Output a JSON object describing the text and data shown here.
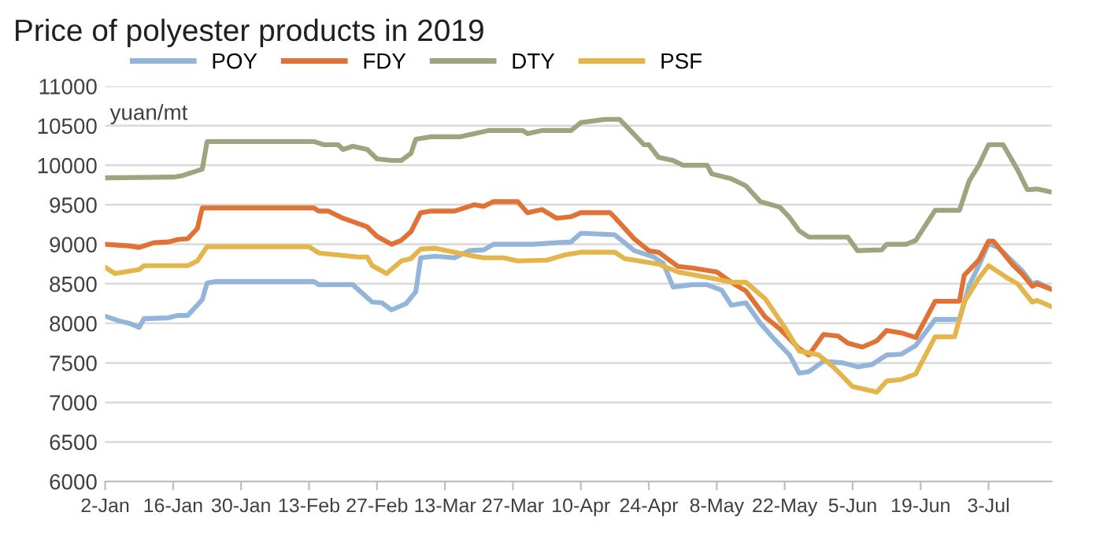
{
  "chart_data": {
    "type": "line",
    "title": "Price of polyester products in 2019",
    "ylabel": "yuan/mt",
    "xlim": [
      "2019-01-02",
      "2019-07-16"
    ],
    "xticks": [
      {
        "value": "2019-01-02",
        "label": "2-Jan"
      },
      {
        "value": "2019-01-16",
        "label": "16-Jan"
      },
      {
        "value": "2019-01-30",
        "label": "30-Jan"
      },
      {
        "value": "2019-02-13",
        "label": "13-Feb"
      },
      {
        "value": "2019-02-27",
        "label": "27-Feb"
      },
      {
        "value": "2019-03-13",
        "label": "13-Mar"
      },
      {
        "value": "2019-03-27",
        "label": "27-Mar"
      },
      {
        "value": "2019-04-10",
        "label": "10-Apr"
      },
      {
        "value": "2019-04-24",
        "label": "24-Apr"
      },
      {
        "value": "2019-05-08",
        "label": "8-May"
      },
      {
        "value": "2019-05-22",
        "label": "22-May"
      },
      {
        "value": "2019-06-05",
        "label": "5-Jun"
      },
      {
        "value": "2019-06-19",
        "label": "19-Jun"
      },
      {
        "value": "2019-07-03",
        "label": "3-Jul"
      }
    ],
    "ylim": [
      6000,
      11000
    ],
    "yticks": [
      6000,
      6500,
      7000,
      7500,
      8000,
      8500,
      9000,
      9500,
      10000,
      10500,
      11000
    ],
    "grid": "y",
    "legend": "top",
    "line_style": "solid",
    "series": [
      {
        "name": "POY",
        "color": "#92b5d9",
        "x": [
          "2019-01-02",
          "2019-01-05",
          "2019-01-07",
          "2019-01-09",
          "2019-01-10",
          "2019-01-15",
          "2019-01-17",
          "2019-01-19",
          "2019-01-22",
          "2019-01-23",
          "2019-01-25",
          "2019-02-14",
          "2019-02-15",
          "2019-02-22",
          "2019-02-26",
          "2019-02-28",
          "2019-03-02",
          "2019-03-05",
          "2019-03-07",
          "2019-03-08",
          "2019-03-11",
          "2019-03-15",
          "2019-03-18",
          "2019-03-21",
          "2019-03-23",
          "2019-03-31",
          "2019-04-05",
          "2019-04-08",
          "2019-04-10",
          "2019-04-17",
          "2019-04-21",
          "2019-04-25",
          "2019-04-27",
          "2019-04-29",
          "2019-05-03",
          "2019-05-06",
          "2019-05-09",
          "2019-05-11",
          "2019-05-14",
          "2019-05-17",
          "2019-05-20",
          "2019-05-23",
          "2019-05-25",
          "2019-05-27",
          "2019-05-30",
          "2019-06-03",
          "2019-06-06",
          "2019-06-09",
          "2019-06-12",
          "2019-06-15",
          "2019-06-18",
          "2019-06-22",
          "2019-06-27",
          "2019-06-29",
          "2019-07-01",
          "2019-07-03",
          "2019-07-05",
          "2019-07-08",
          "2019-07-10",
          "2019-07-12",
          "2019-07-13",
          "2019-07-16"
        ],
        "values": [
          8090,
          8030,
          8000,
          7950,
          8060,
          8070,
          8100,
          8100,
          8300,
          8510,
          8530,
          8530,
          8490,
          8490,
          8270,
          8260,
          8170,
          8250,
          8400,
          8830,
          8850,
          8830,
          8920,
          8930,
          9000,
          9000,
          9020,
          9030,
          9140,
          9120,
          8920,
          8840,
          8760,
          8460,
          8490,
          8490,
          8420,
          8230,
          8260,
          8000,
          7790,
          7600,
          7370,
          7390,
          7520,
          7500,
          7450,
          7480,
          7600,
          7610,
          7720,
          8050,
          8050,
          8480,
          8730,
          9010,
          8960,
          8780,
          8660,
          8500,
          8520,
          8430
        ]
      },
      {
        "name": "FDY",
        "color": "#e07235",
        "x": [
          "2019-01-02",
          "2019-01-07",
          "2019-01-09",
          "2019-01-12",
          "2019-01-15",
          "2019-01-17",
          "2019-01-19",
          "2019-01-21",
          "2019-01-22",
          "2019-02-14",
          "2019-02-15",
          "2019-02-17",
          "2019-02-20",
          "2019-02-25",
          "2019-02-27",
          "2019-03-02",
          "2019-03-04",
          "2019-03-06",
          "2019-03-08",
          "2019-03-10",
          "2019-03-15",
          "2019-03-19",
          "2019-03-21",
          "2019-03-23",
          "2019-03-28",
          "2019-03-30",
          "2019-04-02",
          "2019-04-05",
          "2019-04-08",
          "2019-04-10",
          "2019-04-16",
          "2019-04-17",
          "2019-04-21",
          "2019-04-24",
          "2019-04-26",
          "2019-04-30",
          "2019-05-03",
          "2019-05-08",
          "2019-05-11",
          "2019-05-14",
          "2019-05-18",
          "2019-05-21",
          "2019-05-25",
          "2019-05-27",
          "2019-05-30",
          "2019-06-02",
          "2019-06-04",
          "2019-06-07",
          "2019-06-10",
          "2019-06-12",
          "2019-06-15",
          "2019-06-18",
          "2019-06-22",
          "2019-06-27",
          "2019-06-28",
          "2019-07-01",
          "2019-07-03",
          "2019-07-04",
          "2019-07-08",
          "2019-07-10",
          "2019-07-12",
          "2019-07-13",
          "2019-07-16"
        ],
        "values": [
          9000,
          8980,
          8960,
          9020,
          9030,
          9060,
          9070,
          9200,
          9460,
          9460,
          9420,
          9420,
          9330,
          9220,
          9100,
          9000,
          9050,
          9160,
          9400,
          9420,
          9420,
          9500,
          9480,
          9540,
          9540,
          9400,
          9440,
          9330,
          9350,
          9400,
          9400,
          9340,
          9070,
          8920,
          8900,
          8720,
          8700,
          8650,
          8520,
          8410,
          8080,
          7930,
          7680,
          7600,
          7860,
          7840,
          7750,
          7700,
          7780,
          7910,
          7880,
          7820,
          8280,
          8280,
          8610,
          8800,
          9040,
          9040,
          8740,
          8620,
          8470,
          8500,
          8430
        ]
      },
      {
        "name": "DTY",
        "color": "#9ca67e",
        "x": [
          "2019-01-02",
          "2019-01-16",
          "2019-01-18",
          "2019-01-22",
          "2019-01-23",
          "2019-02-14",
          "2019-02-16",
          "2019-02-19",
          "2019-02-20",
          "2019-02-22",
          "2019-02-25",
          "2019-02-27",
          "2019-03-02",
          "2019-03-04",
          "2019-03-06",
          "2019-03-07",
          "2019-03-10",
          "2019-03-16",
          "2019-03-19",
          "2019-03-22",
          "2019-03-29",
          "2019-03-30",
          "2019-04-02",
          "2019-04-08",
          "2019-04-10",
          "2019-04-15",
          "2019-04-18",
          "2019-04-23",
          "2019-04-24",
          "2019-04-26",
          "2019-04-29",
          "2019-05-01",
          "2019-05-06",
          "2019-05-07",
          "2019-05-11",
          "2019-05-14",
          "2019-05-17",
          "2019-05-21",
          "2019-05-23",
          "2019-05-25",
          "2019-05-27",
          "2019-06-04",
          "2019-06-06",
          "2019-06-11",
          "2019-06-12",
          "2019-06-16",
          "2019-06-18",
          "2019-06-22",
          "2019-06-27",
          "2019-06-29",
          "2019-07-01",
          "2019-07-03",
          "2019-07-06",
          "2019-07-09",
          "2019-07-11",
          "2019-07-13",
          "2019-07-16"
        ],
        "values": [
          9840,
          9850,
          9870,
          9950,
          10300,
          10300,
          10260,
          10260,
          10200,
          10240,
          10200,
          10080,
          10060,
          10060,
          10150,
          10330,
          10360,
          10360,
          10400,
          10440,
          10440,
          10400,
          10440,
          10440,
          10540,
          10580,
          10580,
          10260,
          10260,
          10100,
          10060,
          10000,
          10000,
          9890,
          9830,
          9740,
          9540,
          9470,
          9340,
          9170,
          9090,
          9090,
          8920,
          8930,
          9000,
          9000,
          9050,
          9430,
          9430,
          9800,
          10000,
          10260,
          10260,
          9940,
          9690,
          9700,
          9660
        ]
      },
      {
        "name": "PSF",
        "color": "#e3b54a",
        "x": [
          "2019-01-02",
          "2019-01-04",
          "2019-01-07",
          "2019-01-09",
          "2019-01-10",
          "2019-01-19",
          "2019-01-21",
          "2019-01-23",
          "2019-02-13",
          "2019-02-15",
          "2019-02-20",
          "2019-02-23",
          "2019-02-25",
          "2019-02-26",
          "2019-03-01",
          "2019-03-04",
          "2019-03-06",
          "2019-03-08",
          "2019-03-11",
          "2019-03-19",
          "2019-03-21",
          "2019-03-25",
          "2019-03-28",
          "2019-04-03",
          "2019-04-07",
          "2019-04-10",
          "2019-04-17",
          "2019-04-19",
          "2019-04-26",
          "2019-04-30",
          "2019-05-07",
          "2019-05-11",
          "2019-05-14",
          "2019-05-18",
          "2019-05-22",
          "2019-05-25",
          "2019-05-29",
          "2019-06-01",
          "2019-06-05",
          "2019-06-10",
          "2019-06-12",
          "2019-06-15",
          "2019-06-18",
          "2019-06-22",
          "2019-06-26",
          "2019-06-28",
          "2019-07-01",
          "2019-07-03",
          "2019-07-07",
          "2019-07-09",
          "2019-07-12",
          "2019-07-13",
          "2019-07-16"
        ],
        "values": [
          8710,
          8630,
          8660,
          8680,
          8730,
          8730,
          8790,
          8970,
          8970,
          8890,
          8860,
          8840,
          8840,
          8730,
          8630,
          8790,
          8820,
          8940,
          8950,
          8850,
          8830,
          8830,
          8790,
          8800,
          8870,
          8900,
          8900,
          8820,
          8750,
          8650,
          8570,
          8520,
          8520,
          8310,
          7950,
          7650,
          7600,
          7450,
          7200,
          7130,
          7270,
          7290,
          7360,
          7830,
          7830,
          8270,
          8570,
          8730,
          8570,
          8500,
          8270,
          8290,
          8210
        ]
      }
    ]
  }
}
